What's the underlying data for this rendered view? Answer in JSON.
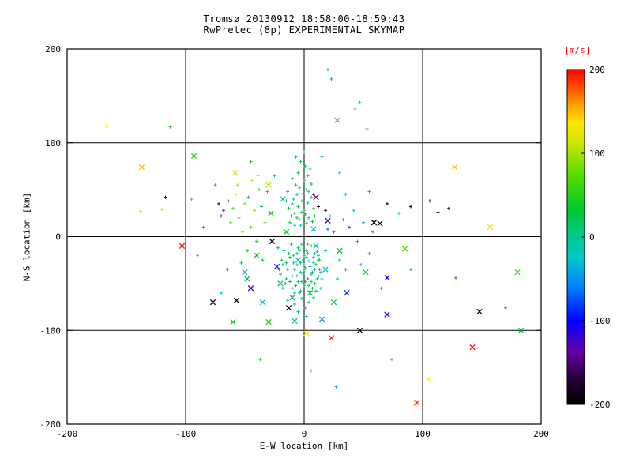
{
  "page": {
    "background": "#ffffff"
  },
  "chart_data": {
    "type": "scatter",
    "title": "Tromsø 20130912 18:58:00-18:59:43",
    "subtitle": "RwPretec (8p) EXPERIMENTAL SKYMAP",
    "xlabel": "E-W location [km]",
    "ylabel": "N-S location [km]",
    "xlim": [
      -200,
      200
    ],
    "ylim": [
      -200,
      200
    ],
    "xticks": [
      -200,
      -100,
      0,
      100,
      200
    ],
    "yticks": [
      -200,
      -100,
      0,
      100,
      200
    ],
    "grid": true,
    "grid_lines": [
      -100,
      0,
      100
    ],
    "axis_color": "#000000",
    "colorbar": {
      "label": "[m/s]",
      "label_color": "#ff0000",
      "ticks": [
        200,
        100,
        0,
        -100,
        -200
      ],
      "range": [
        -200,
        200
      ],
      "colormap": "rainbow",
      "stops": [
        [
          0.0,
          "#000000"
        ],
        [
          0.08,
          "#2a003c"
        ],
        [
          0.16,
          "#6600aa"
        ],
        [
          0.25,
          "#0000ff"
        ],
        [
          0.35,
          "#0080ff"
        ],
        [
          0.44,
          "#00c8c8"
        ],
        [
          0.52,
          "#00c878"
        ],
        [
          0.58,
          "#00c832"
        ],
        [
          0.68,
          "#50dc00"
        ],
        [
          0.78,
          "#c8e600"
        ],
        [
          0.84,
          "#ffe600"
        ],
        [
          0.9,
          "#ff9600"
        ],
        [
          0.96,
          "#ff3c00"
        ],
        [
          1.0,
          "#ff0000"
        ]
      ]
    },
    "points": [
      [
        -22,
        -12,
        10,
        "+"
      ],
      [
        -18,
        -30,
        -10,
        "+"
      ],
      [
        -15,
        -45,
        5,
        "+"
      ],
      [
        -12,
        -22,
        20,
        "+"
      ],
      [
        -10,
        -55,
        -15,
        "+"
      ],
      [
        -8,
        -35,
        15,
        "+"
      ],
      [
        -6,
        -18,
        30,
        "+"
      ],
      [
        -5,
        -48,
        0,
        "+"
      ],
      [
        -4,
        -60,
        -20,
        "+"
      ],
      [
        -3,
        -28,
        25,
        "+"
      ],
      [
        -2,
        -8,
        10,
        "+"
      ],
      [
        -1,
        -40,
        -5,
        "+"
      ],
      [
        0,
        -52,
        15,
        "+"
      ],
      [
        0,
        -20,
        35,
        "+"
      ],
      [
        1,
        -33,
        -12,
        "+"
      ],
      [
        2,
        -15,
        22,
        "+"
      ],
      [
        3,
        -45,
        8,
        "+"
      ],
      [
        4,
        -26,
        -18,
        "+"
      ],
      [
        5,
        -58,
        12,
        "+"
      ],
      [
        6,
        -10,
        28,
        "+"
      ],
      [
        7,
        -38,
        3,
        "+"
      ],
      [
        8,
        -22,
        -8,
        "+"
      ],
      [
        9,
        -50,
        18,
        "+"
      ],
      [
        10,
        -30,
        32,
        "+"
      ],
      [
        11,
        -16,
        -2,
        "+"
      ],
      [
        12,
        -42,
        14,
        "+"
      ],
      [
        13,
        -25,
        24,
        "+"
      ],
      [
        14,
        -55,
        -10,
        "+"
      ],
      [
        -20,
        -40,
        18,
        "+"
      ],
      [
        -17,
        -15,
        -22,
        "+"
      ],
      [
        -14,
        -35,
        40,
        "+"
      ],
      [
        -11,
        -8,
        12,
        "+"
      ],
      [
        -9,
        -28,
        -5,
        "+"
      ],
      [
        -7,
        -52,
        20,
        "+"
      ],
      [
        -5,
        -12,
        35,
        "+"
      ],
      [
        -3,
        -38,
        -15,
        "+"
      ],
      [
        -1,
        -25,
        8,
        "+"
      ],
      [
        1,
        -48,
        25,
        "+"
      ],
      [
        3,
        -8,
        -10,
        "+"
      ],
      [
        5,
        -32,
        15,
        "+"
      ],
      [
        7,
        -55,
        30,
        "+"
      ],
      [
        9,
        -18,
        -20,
        "+"
      ],
      [
        11,
        -45,
        5,
        "+"
      ],
      [
        13,
        -35,
        20,
        "+"
      ],
      [
        -19,
        -25,
        -8,
        "+"
      ],
      [
        -16,
        -50,
        15,
        "+"
      ],
      [
        -13,
        -18,
        28,
        "+"
      ],
      [
        -10,
        -42,
        -12,
        "+"
      ],
      [
        -8,
        -60,
        22,
        "+"
      ],
      [
        -6,
        -30,
        38,
        "+"
      ],
      [
        -4,
        -15,
        -25,
        "+"
      ],
      [
        -2,
        -48,
        10,
        "+"
      ],
      [
        0,
        -35,
        18,
        "+"
      ],
      [
        2,
        -22,
        -15,
        "+"
      ],
      [
        4,
        -52,
        25,
        "+"
      ],
      [
        6,
        -40,
        12,
        "+"
      ],
      [
        8,
        -28,
        -5,
        "+"
      ],
      [
        10,
        -58,
        20,
        "+"
      ],
      [
        12,
        -20,
        30,
        "+"
      ],
      [
        14,
        -38,
        -18,
        "+"
      ],
      [
        -21,
        -35,
        25,
        "+"
      ],
      [
        -18,
        -55,
        -10,
        "+"
      ],
      [
        -15,
        -28,
        15,
        "+"
      ],
      [
        -12,
        -48,
        30,
        "+"
      ],
      [
        -9,
        -20,
        -20,
        "+"
      ],
      [
        -6,
        -42,
        10,
        "+"
      ],
      [
        -3,
        -58,
        20,
        "+"
      ],
      [
        0,
        -30,
        -8,
        "+"
      ],
      [
        3,
        -18,
        28,
        "+"
      ],
      [
        6,
        -48,
        15,
        "+"
      ],
      [
        9,
        -35,
        -12,
        "+"
      ],
      [
        12,
        -25,
        22,
        "+"
      ],
      [
        15,
        -45,
        8,
        "+"
      ],
      [
        -2,
        -66,
        5,
        "+"
      ],
      [
        4,
        -70,
        -12,
        "+"
      ],
      [
        -8,
        -72,
        18,
        "+"
      ],
      [
        1,
        -76,
        -25,
        "+"
      ],
      [
        8,
        -65,
        10,
        "+"
      ],
      [
        -14,
        -68,
        -8,
        "+"
      ],
      [
        -5,
        -80,
        15,
        "+"
      ],
      [
        2,
        -85,
        -30,
        "+"
      ],
      [
        -12,
        15,
        20,
        "+"
      ],
      [
        -10,
        35,
        -10,
        "+"
      ],
      [
        -8,
        25,
        30,
        "+"
      ],
      [
        -6,
        45,
        5,
        "+"
      ],
      [
        -4,
        18,
        -15,
        "+"
      ],
      [
        -2,
        38,
        25,
        "+"
      ],
      [
        0,
        28,
        40,
        "+"
      ],
      [
        2,
        50,
        10,
        "+"
      ],
      [
        4,
        20,
        -20,
        "+"
      ],
      [
        6,
        42,
        15,
        "+"
      ],
      [
        8,
        30,
        28,
        "+"
      ],
      [
        -14,
        48,
        12,
        "+"
      ],
      [
        -11,
        22,
        -8,
        "+"
      ],
      [
        -7,
        55,
        18,
        "+"
      ],
      [
        -5,
        32,
        35,
        "+"
      ],
      [
        -3,
        12,
        -12,
        "+"
      ],
      [
        -1,
        46,
        22,
        "+"
      ],
      [
        1,
        24,
        8,
        "+"
      ],
      [
        3,
        36,
        -18,
        "+"
      ],
      [
        5,
        58,
        14,
        "+"
      ],
      [
        7,
        16,
        26,
        "+"
      ],
      [
        -9,
        40,
        -5,
        "+"
      ],
      [
        -13,
        30,
        15,
        "+"
      ],
      [
        0,
        60,
        20,
        "+"
      ],
      [
        -4,
        52,
        -10,
        "+"
      ],
      [
        2,
        14,
        32,
        "+"
      ],
      [
        -6,
        20,
        45,
        "+"
      ],
      [
        4,
        48,
        -15,
        "+"
      ],
      [
        -2,
        26,
        18,
        "+"
      ],
      [
        6,
        56,
        25,
        "+"
      ],
      [
        -8,
        12,
        -25,
        "+"
      ],
      [
        -15,
        38,
        10,
        "+"
      ],
      [
        9,
        22,
        35,
        "+"
      ],
      [
        -1,
        70,
        15,
        "+"
      ],
      [
        3,
        65,
        -8,
        "+"
      ],
      [
        -5,
        68,
        22,
        "+"
      ],
      [
        -10,
        62,
        30,
        "+"
      ],
      [
        1,
        75,
        5,
        "+"
      ],
      [
        -3,
        80,
        18,
        "+"
      ],
      [
        5,
        72,
        -12,
        "+"
      ],
      [
        -7,
        85,
        25,
        "+"
      ],
      [
        0,
        90,
        12,
        "+"
      ],
      [
        -55,
        20,
        60,
        "+"
      ],
      [
        -50,
        35,
        90,
        "+"
      ],
      [
        -45,
        10,
        75,
        "+"
      ],
      [
        -58,
        45,
        110,
        "+"
      ],
      [
        -48,
        -15,
        40,
        "+"
      ],
      [
        -42,
        28,
        85,
        "+"
      ],
      [
        -38,
        50,
        55,
        "+"
      ],
      [
        -52,
        5,
        100,
        "+"
      ],
      [
        -35,
        -25,
        30,
        "+"
      ],
      [
        -60,
        30,
        70,
        "+"
      ],
      [
        -44,
        60,
        120,
        "+"
      ],
      [
        -40,
        -5,
        50,
        "+"
      ],
      [
        -56,
        55,
        95,
        "+"
      ],
      [
        -33,
        15,
        65,
        "+"
      ],
      [
        -47,
        42,
        -30,
        "+"
      ],
      [
        -36,
        32,
        25,
        "+"
      ],
      [
        -62,
        15,
        80,
        "+"
      ],
      [
        -31,
        48,
        45,
        "+"
      ],
      [
        -53,
        -28,
        15,
        "+"
      ],
      [
        -39,
        65,
        105,
        "+"
      ],
      [
        -72,
        35,
        -160,
        "+"
      ],
      [
        -68,
        28,
        -140,
        "+"
      ],
      [
        -64,
        38,
        -170,
        "+"
      ],
      [
        -70,
        22,
        -150,
        "+"
      ],
      [
        -117,
        42,
        -195,
        "+"
      ],
      [
        -120,
        29,
        140,
        "+"
      ],
      [
        -138,
        27,
        120,
        "+"
      ],
      [
        -167,
        118,
        130,
        "+"
      ],
      [
        -113,
        117,
        40,
        "+"
      ],
      [
        18,
        -15,
        -40,
        "+"
      ],
      [
        25,
        5,
        -60,
        "+"
      ],
      [
        30,
        -25,
        20,
        "+"
      ],
      [
        38,
        10,
        -80,
        "+"
      ],
      [
        45,
        -5,
        35,
        "+"
      ],
      [
        22,
        22,
        -30,
        "+"
      ],
      [
        35,
        -35,
        10,
        "+"
      ],
      [
        50,
        15,
        -50,
        "+"
      ],
      [
        28,
        -45,
        25,
        "+"
      ],
      [
        42,
        28,
        -20,
        "+"
      ],
      [
        55,
        -18,
        40,
        "+"
      ],
      [
        20,
        8,
        -70,
        "+"
      ],
      [
        33,
        18,
        15,
        "+"
      ],
      [
        48,
        -30,
        -45,
        "+"
      ],
      [
        58,
        5,
        20,
        "+"
      ],
      [
        5,
        38,
        -185,
        "+"
      ],
      [
        12,
        32,
        -190,
        "+"
      ],
      [
        18,
        28,
        -180,
        "+"
      ],
      [
        8,
        45,
        -175,
        "+"
      ],
      [
        70,
        35,
        -200,
        "+"
      ],
      [
        90,
        32,
        -200,
        "+"
      ],
      [
        106,
        38,
        -200,
        "+"
      ],
      [
        113,
        26,
        -195,
        "+"
      ],
      [
        122,
        30,
        -190,
        "+"
      ],
      [
        20,
        178,
        35,
        "+"
      ],
      [
        23,
        168,
        20,
        "+"
      ],
      [
        47,
        143,
        -25,
        "+"
      ],
      [
        43,
        136,
        -30,
        "+"
      ],
      [
        53,
        115,
        -35,
        "+"
      ],
      [
        74,
        -131,
        50,
        "+"
      ],
      [
        6,
        -143,
        60,
        "+"
      ],
      [
        -37,
        -131,
        45,
        "+"
      ],
      [
        27,
        -160,
        -40,
        "+"
      ],
      [
        105,
        -152,
        130,
        "+"
      ],
      [
        170,
        -76,
        185,
        "+"
      ],
      [
        128,
        -44,
        190,
        "+"
      ],
      [
        -85,
        10,
        20,
        "+"
      ],
      [
        -90,
        -20,
        -15,
        "+"
      ],
      [
        -65,
        -35,
        30,
        "+"
      ],
      [
        -75,
        55,
        45,
        "+"
      ],
      [
        35,
        45,
        -25,
        "+"
      ],
      [
        55,
        48,
        15,
        "+"
      ],
      [
        65,
        -55,
        25,
        "+"
      ],
      [
        -25,
        65,
        35,
        "+"
      ],
      [
        15,
        85,
        -20,
        "+"
      ],
      [
        -45,
        80,
        50,
        "+"
      ],
      [
        30,
        68,
        -35,
        "+"
      ],
      [
        -95,
        40,
        60,
        "+"
      ],
      [
        80,
        25,
        -15,
        "+"
      ],
      [
        90,
        -35,
        30,
        "+"
      ],
      [
        -70,
        -60,
        -40,
        "+"
      ],
      [
        -57,
        -68,
        -195,
        "x"
      ],
      [
        -77,
        -70,
        -190,
        "x"
      ],
      [
        59,
        15,
        -200,
        "x"
      ],
      [
        64,
        14,
        -195,
        "x"
      ],
      [
        148,
        -80,
        -190,
        "x"
      ],
      [
        47,
        -100,
        -185,
        "x"
      ],
      [
        -27,
        -5,
        -195,
        "x"
      ],
      [
        -13,
        -76,
        -190,
        "x"
      ],
      [
        -103,
        -10,
        195,
        "x"
      ],
      [
        23,
        -108,
        190,
        "x"
      ],
      [
        142,
        -118,
        198,
        "x"
      ],
      [
        95,
        -177,
        192,
        "x"
      ],
      [
        -137,
        74,
        150,
        "x"
      ],
      [
        127,
        74,
        145,
        "x"
      ],
      [
        157,
        10,
        140,
        "x"
      ],
      [
        2,
        -103,
        135,
        "x"
      ],
      [
        70,
        -83,
        -110,
        "x"
      ],
      [
        70,
        -44,
        -100,
        "x"
      ],
      [
        36,
        -60,
        -90,
        "x"
      ],
      [
        -45,
        -55,
        -120,
        "x"
      ],
      [
        20,
        17,
        -130,
        "x"
      ],
      [
        10,
        42,
        -140,
        "x"
      ],
      [
        -23,
        -32,
        -95,
        "x"
      ],
      [
        -93,
        86,
        60,
        "x"
      ],
      [
        -30,
        -91,
        55,
        "x"
      ],
      [
        85,
        -13,
        70,
        "x"
      ],
      [
        180,
        -38,
        65,
        "x"
      ],
      [
        -60,
        -91,
        48,
        "x"
      ],
      [
        52,
        -38,
        40,
        "x"
      ],
      [
        28,
        124,
        55,
        "x"
      ],
      [
        183,
        -100,
        30,
        "x"
      ],
      [
        -50,
        -38,
        -40,
        "x"
      ],
      [
        -35,
        -70,
        -35,
        "x"
      ],
      [
        15,
        -88,
        -45,
        "x"
      ],
      [
        -58,
        68,
        115,
        "x"
      ],
      [
        -30,
        55,
        108,
        "x"
      ],
      [
        -20,
        -50,
        15,
        "x"
      ],
      [
        -5,
        -25,
        -20,
        "x"
      ],
      [
        5,
        -60,
        25,
        "x"
      ],
      [
        -15,
        5,
        30,
        "x"
      ],
      [
        10,
        -10,
        -15,
        "x"
      ],
      [
        -40,
        -20,
        35,
        "x"
      ],
      [
        -10,
        -65,
        20,
        "x"
      ],
      [
        18,
        -35,
        -25,
        "x"
      ],
      [
        -28,
        25,
        40,
        "x"
      ],
      [
        8,
        8,
        -30,
        "x"
      ],
      [
        -48,
        -45,
        18,
        "x"
      ],
      [
        25,
        -70,
        22,
        "x"
      ],
      [
        -18,
        40,
        -18,
        "x"
      ],
      [
        30,
        -15,
        28,
        "x"
      ],
      [
        -8,
        -90,
        15,
        "x"
      ]
    ]
  }
}
